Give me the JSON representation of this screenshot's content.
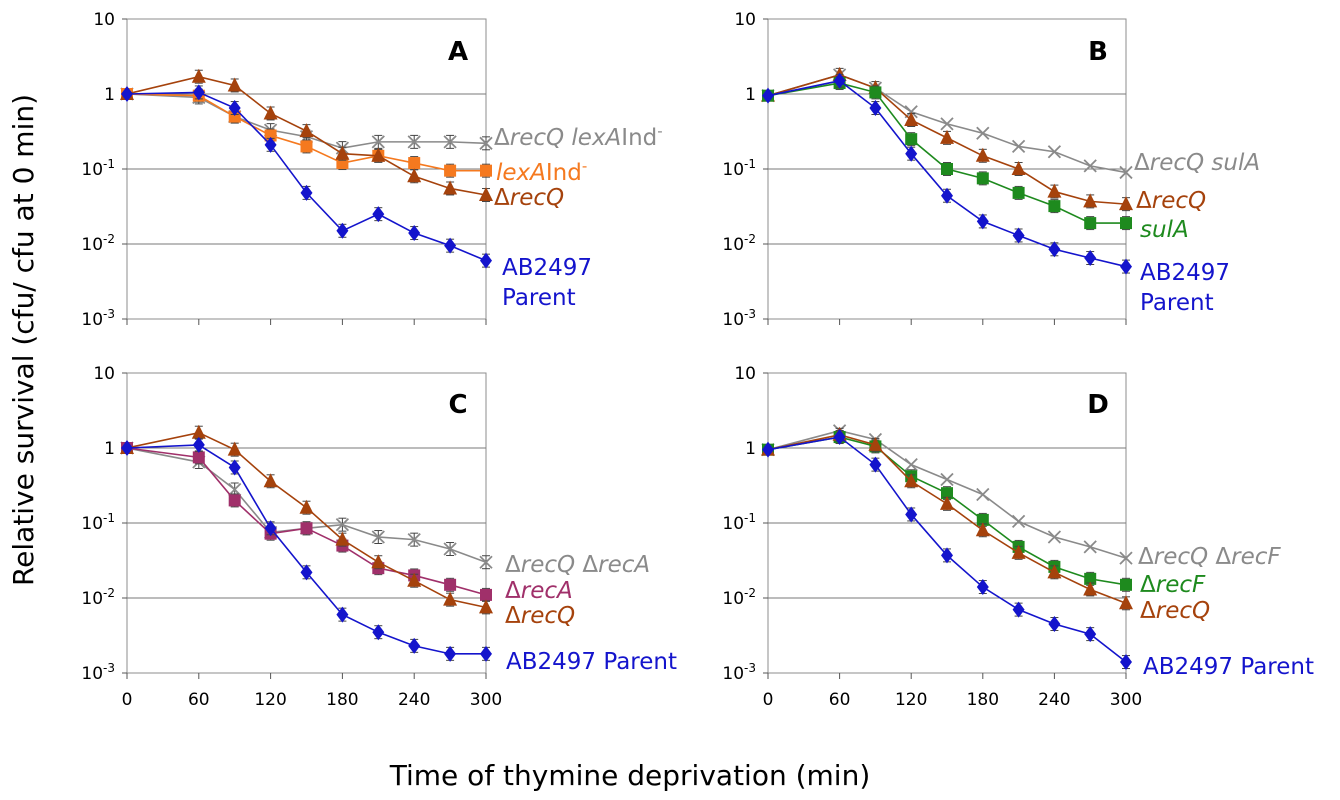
{
  "figure": {
    "ylabel": "Relative survival (cfu/ cfu at 0 min)",
    "xlabel": "Time of thymine deprivation (min)"
  },
  "chart_data": [
    {
      "type": "line",
      "panel": "A",
      "y_scale": "log",
      "ylim": [
        0.001,
        10
      ],
      "xlim": [
        0,
        300
      ],
      "x_ticks": [
        0,
        60,
        120,
        180,
        240,
        300
      ],
      "y_ticks": [
        {
          "base": "10",
          "exp": "-3"
        },
        {
          "base": "10",
          "exp": "-2"
        },
        {
          "base": "10",
          "exp": "-1"
        },
        {
          "base": "1",
          "exp": ""
        },
        {
          "base": "10",
          "exp": ""
        }
      ],
      "grid": "horizontal",
      "show_x_tick_labels": false,
      "series": [
        {
          "color": "#8a8a8a",
          "marker": "x",
          "error_bars": true,
          "label": [
            {
              "t": "Δ"
            },
            {
              "t": "recQ lexA",
              "i": true
            },
            {
              "t": "Ind"
            },
            {
              "t": "-",
              "sup": true
            }
          ],
          "x": [
            0,
            60,
            90,
            120,
            150,
            180,
            210,
            240,
            270,
            300
          ],
          "y": [
            1.0,
            0.9,
            0.5,
            0.33,
            0.27,
            0.19,
            0.23,
            0.23,
            0.23,
            0.22
          ]
        },
        {
          "color": "#f5791f",
          "marker": "square",
          "error_bars": true,
          "label": [
            {
              "t": "lexA",
              "i": true
            },
            {
              "t": "Ind"
            },
            {
              "t": "-",
              "sup": true
            }
          ],
          "x": [
            0,
            60,
            90,
            120,
            150,
            180,
            210,
            240,
            270,
            300
          ],
          "y": [
            1.0,
            0.95,
            0.5,
            0.28,
            0.2,
            0.12,
            0.15,
            0.12,
            0.095,
            0.095
          ]
        },
        {
          "color": "#a5420c",
          "marker": "triangle",
          "error_bars": true,
          "label": [
            {
              "t": "Δ"
            },
            {
              "t": "recQ",
              "i": true
            }
          ],
          "x": [
            0,
            60,
            90,
            120,
            150,
            180,
            210,
            240,
            270,
            300
          ],
          "y": [
            1.0,
            1.7,
            1.3,
            0.55,
            0.32,
            0.16,
            0.15,
            0.08,
            0.055,
            0.045
          ]
        },
        {
          "color": "#1414cc",
          "marker": "diamond",
          "error_bars": true,
          "label": [
            {
              "t": "AB2497"
            }
          ],
          "label2": "Parent",
          "x": [
            0,
            60,
            90,
            120,
            150,
            180,
            210,
            240,
            270,
            300
          ],
          "y": [
            1.0,
            1.05,
            0.65,
            0.21,
            0.048,
            0.015,
            0.025,
            0.014,
            0.0095,
            0.006
          ]
        }
      ]
    },
    {
      "type": "line",
      "panel": "B",
      "y_scale": "log",
      "ylim": [
        0.001,
        10
      ],
      "xlim": [
        0,
        300
      ],
      "x_ticks": [
        0,
        60,
        120,
        180,
        240,
        300
      ],
      "y_ticks": [
        {
          "base": "10",
          "exp": "-3"
        },
        {
          "base": "10",
          "exp": "-2"
        },
        {
          "base": "10",
          "exp": "-1"
        },
        {
          "base": "1",
          "exp": ""
        },
        {
          "base": "10",
          "exp": ""
        }
      ],
      "grid": "horizontal",
      "show_x_tick_labels": false,
      "series": [
        {
          "color": "#8a8a8a",
          "marker": "x",
          "error_bars": false,
          "label": [
            {
              "t": "Δ"
            },
            {
              "t": "recQ sulA",
              "i": true
            }
          ],
          "x": [
            0,
            60,
            90,
            120,
            150,
            180,
            210,
            240,
            270,
            300
          ],
          "y": [
            0.95,
            1.8,
            1.2,
            0.58,
            0.4,
            0.3,
            0.2,
            0.17,
            0.11,
            0.09
          ]
        },
        {
          "color": "#a5420c",
          "marker": "triangle",
          "error_bars": true,
          "label": [
            {
              "t": "Δ"
            },
            {
              "t": "recQ",
              "i": true
            }
          ],
          "x": [
            0,
            60,
            90,
            120,
            150,
            180,
            210,
            240,
            270,
            300
          ],
          "y": [
            0.95,
            1.8,
            1.2,
            0.45,
            0.26,
            0.15,
            0.1,
            0.05,
            0.037,
            0.034
          ]
        },
        {
          "color": "#1e8a1e",
          "marker": "square",
          "error_bars": true,
          "label": [
            {
              "t": "sulA",
              "i": true
            }
          ],
          "x": [
            0,
            60,
            90,
            120,
            150,
            180,
            210,
            240,
            270,
            300
          ],
          "y": [
            0.95,
            1.4,
            1.05,
            0.25,
            0.1,
            0.075,
            0.048,
            0.032,
            0.019,
            0.019
          ]
        },
        {
          "color": "#1414cc",
          "marker": "diamond",
          "error_bars": true,
          "label": [
            {
              "t": "AB2497"
            }
          ],
          "label2": "Parent",
          "x": [
            0,
            60,
            90,
            120,
            150,
            180,
            210,
            240,
            270,
            300
          ],
          "y": [
            0.95,
            1.5,
            0.65,
            0.16,
            0.044,
            0.02,
            0.013,
            0.0085,
            0.0065,
            0.005
          ]
        }
      ]
    },
    {
      "type": "line",
      "panel": "C",
      "y_scale": "log",
      "ylim": [
        0.001,
        10
      ],
      "xlim": [
        0,
        300
      ],
      "x_ticks": [
        0,
        60,
        120,
        180,
        240,
        300
      ],
      "y_ticks": [
        {
          "base": "10",
          "exp": "-3"
        },
        {
          "base": "10",
          "exp": "-2"
        },
        {
          "base": "10",
          "exp": "-1"
        },
        {
          "base": "1",
          "exp": ""
        },
        {
          "base": "10",
          "exp": ""
        }
      ],
      "grid": "horizontal",
      "show_x_tick_labels": true,
      "series": [
        {
          "color": "#8a8a8a",
          "marker": "x",
          "error_bars": true,
          "label": [
            {
              "t": "Δ"
            },
            {
              "t": "recQ",
              "i": true
            },
            {
              "t": " Δ"
            },
            {
              "t": "recA",
              "i": true
            }
          ],
          "x": [
            0,
            60,
            90,
            120,
            150,
            180,
            210,
            240,
            270,
            300
          ],
          "y": [
            1.0,
            0.65,
            0.28,
            0.075,
            0.085,
            0.095,
            0.065,
            0.06,
            0.045,
            0.03
          ]
        },
        {
          "color": "#a0306a",
          "marker": "square",
          "error_bars": true,
          "label": [
            {
              "t": "Δ"
            },
            {
              "t": "recA",
              "i": true
            }
          ],
          "x": [
            0,
            60,
            90,
            120,
            150,
            180,
            210,
            240,
            270,
            300
          ],
          "y": [
            1.0,
            0.75,
            0.2,
            0.072,
            0.085,
            0.05,
            0.025,
            0.02,
            0.015,
            0.011
          ]
        },
        {
          "color": "#a5420c",
          "marker": "triangle",
          "error_bars": true,
          "label": [
            {
              "t": "Δ"
            },
            {
              "t": "recQ",
              "i": true
            }
          ],
          "x": [
            0,
            60,
            90,
            120,
            150,
            180,
            210,
            240,
            270,
            300
          ],
          "y": [
            1.0,
            1.6,
            0.95,
            0.36,
            0.16,
            0.06,
            0.03,
            0.017,
            0.0095,
            0.0075
          ]
        },
        {
          "color": "#1414cc",
          "marker": "diamond",
          "error_bars": true,
          "label": [
            {
              "t": "AB2497 Parent"
            }
          ],
          "x": [
            0,
            60,
            90,
            120,
            150,
            180,
            210,
            240,
            270,
            300
          ],
          "y": [
            1.0,
            1.1,
            0.55,
            0.085,
            0.022,
            0.006,
            0.0035,
            0.0023,
            0.0018,
            0.0018
          ]
        }
      ]
    },
    {
      "type": "line",
      "panel": "D",
      "y_scale": "log",
      "ylim": [
        0.001,
        10
      ],
      "xlim": [
        0,
        300
      ],
      "x_ticks": [
        0,
        60,
        120,
        180,
        240,
        300
      ],
      "y_ticks": [
        {
          "base": "10",
          "exp": "-3"
        },
        {
          "base": "10",
          "exp": "-2"
        },
        {
          "base": "10",
          "exp": "-1"
        },
        {
          "base": "1",
          "exp": ""
        },
        {
          "base": "10",
          "exp": ""
        }
      ],
      "grid": "horizontal",
      "show_x_tick_labels": true,
      "series": [
        {
          "color": "#8a8a8a",
          "marker": "x",
          "error_bars": false,
          "label": [
            {
              "t": "Δ"
            },
            {
              "t": "recQ",
              "i": true
            },
            {
              "t": " Δ"
            },
            {
              "t": "recF",
              "i": true
            }
          ],
          "x": [
            0,
            60,
            90,
            120,
            150,
            180,
            210,
            240,
            270,
            300
          ],
          "y": [
            0.95,
            1.7,
            1.3,
            0.6,
            0.38,
            0.24,
            0.105,
            0.065,
            0.048,
            0.034
          ]
        },
        {
          "color": "#1e8a1e",
          "marker": "square",
          "error_bars": true,
          "label": [
            {
              "t": "Δ"
            },
            {
              "t": "recF",
              "i": true
            }
          ],
          "x": [
            0,
            60,
            90,
            120,
            150,
            180,
            210,
            240,
            270,
            300
          ],
          "y": [
            0.95,
            1.4,
            1.05,
            0.42,
            0.25,
            0.11,
            0.048,
            0.026,
            0.018,
            0.015
          ]
        },
        {
          "color": "#a5420c",
          "marker": "triangle",
          "error_bars": true,
          "label": [
            {
              "t": "Δ"
            },
            {
              "t": "recQ",
              "i": true
            }
          ],
          "x": [
            0,
            60,
            90,
            120,
            150,
            180,
            210,
            240,
            270,
            300
          ],
          "y": [
            0.95,
            1.5,
            1.1,
            0.36,
            0.18,
            0.08,
            0.04,
            0.022,
            0.013,
            0.0085
          ]
        },
        {
          "color": "#1414cc",
          "marker": "diamond",
          "error_bars": true,
          "label": [
            {
              "t": "AB2497 Parent"
            }
          ],
          "x": [
            0,
            60,
            90,
            120,
            150,
            180,
            210,
            240,
            270,
            300
          ],
          "y": [
            0.95,
            1.4,
            0.6,
            0.13,
            0.037,
            0.014,
            0.007,
            0.0045,
            0.0033,
            0.0014
          ]
        }
      ]
    }
  ]
}
